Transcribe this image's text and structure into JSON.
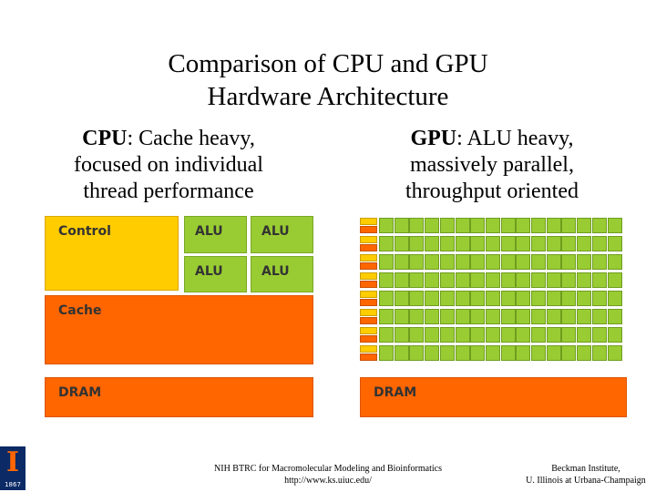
{
  "title": {
    "line1": "Comparison of CPU and GPU",
    "line2": "Hardware Architecture"
  },
  "cpu_caption": {
    "bold": "CPU",
    "rest1": ": Cache heavy,",
    "line2": "focused on individual",
    "line3": "thread performance"
  },
  "gpu_caption": {
    "bold": "GPU",
    "rest1": ": ALU heavy,",
    "line2": "massively parallel,",
    "line3": "throughput oriented"
  },
  "cpu_blocks": {
    "control": "Control",
    "alu": "ALU",
    "cache": "Cache",
    "dram": "DRAM"
  },
  "gpu_blocks": {
    "dram": "DRAM",
    "rows": 8,
    "cols": 16
  },
  "colors": {
    "control": "#ffcc00",
    "alu": "#99cc33",
    "cache_dram": "#ff6600"
  },
  "footer": {
    "mid_line1": "NIH BTRC for Macromolecular Modeling and Bioinformatics",
    "mid_line2": "http://www.ks.uiuc.edu/",
    "right_line1": "Beckman Institute,",
    "right_line2": "U. Illinois at Urbana-Champaign"
  },
  "logo": {
    "letter": "I",
    "year": "1867"
  }
}
